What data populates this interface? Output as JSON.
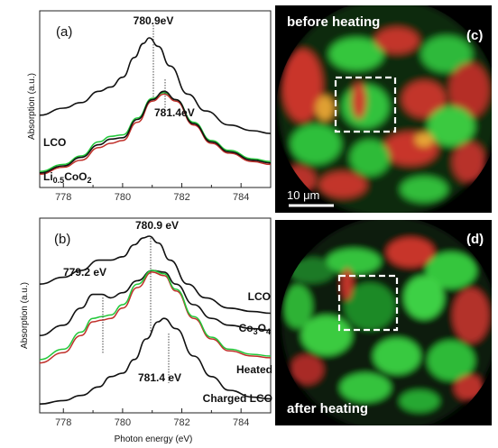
{
  "panels": {
    "a": {
      "label": "(a)",
      "ylabel": "Absorption (a.u.)",
      "peak1": "780.9eV",
      "peak2": "781.4eV",
      "curve_label_1": "LCO",
      "curve_label_2_main": "Li",
      "curve_label_2_sub1": "0.5",
      "curve_label_2_mid": "CoO",
      "curve_label_2_sub2": "2",
      "xticks": [
        "778",
        "780",
        "782",
        "784"
      ]
    },
    "b": {
      "label": "(b)",
      "ylabel": "Absorption (a.u.)",
      "xlabel": "Photon energy (eV)",
      "peak_top": "780.9 eV",
      "peak_left": "779.2 eV",
      "peak_right": "781.4 eV",
      "curve_label_lco": "LCO",
      "curve_label_co3o4_main": "Co",
      "curve_label_co3o4_sub1": "3",
      "curve_label_co3o4_mid": "O",
      "curve_label_co3o4_sub2": "4",
      "curve_label_heated": "Heated",
      "curve_label_charged": "Charged LCO",
      "xticks": [
        "778",
        "780",
        "782",
        "784"
      ]
    },
    "c": {
      "label": "(c)",
      "caption": "before heating",
      "scalebar": "10 μm"
    },
    "d": {
      "label": "(d)",
      "caption": "after heating"
    }
  },
  "colors": {
    "green": "#22c83a",
    "red": "#c0302a",
    "black": "#111111"
  },
  "chart_data": [
    {
      "type": "line",
      "panel": "a",
      "xlabel": "",
      "ylabel": "Absorption (a.u.)",
      "xlim": [
        777.2,
        785
      ],
      "series": [
        {
          "name": "LCO",
          "color": "#111111",
          "x": [
            777.2,
            778.0,
            778.6,
            779.2,
            779.6,
            780.0,
            780.4,
            780.7,
            780.9,
            781.2,
            781.6,
            782.2,
            782.8,
            783.6,
            784.4,
            785.0
          ],
          "y": [
            0.45,
            0.5,
            0.54,
            0.62,
            0.65,
            0.72,
            0.86,
            0.96,
            1.0,
            0.94,
            0.8,
            0.6,
            0.48,
            0.38,
            0.34,
            0.32
          ]
        },
        {
          "name": "",
          "color": "#22c83a",
          "x": [
            777.2,
            778.0,
            778.6,
            779.2,
            779.6,
            780.0,
            780.5,
            781.0,
            781.4,
            781.8,
            782.4,
            783.0,
            783.6,
            784.4,
            785.0
          ],
          "y": [
            0.05,
            0.1,
            0.16,
            0.26,
            0.3,
            0.31,
            0.43,
            0.57,
            0.61,
            0.56,
            0.4,
            0.27,
            0.2,
            0.14,
            0.12
          ]
        },
        {
          "name": "",
          "color": "#c0302a",
          "x": [
            777.2,
            778.0,
            778.6,
            779.2,
            779.6,
            780.0,
            780.5,
            781.0,
            781.4,
            781.8,
            782.4,
            783.0,
            783.6,
            784.4,
            785.0
          ],
          "y": [
            0.03,
            0.08,
            0.13,
            0.22,
            0.25,
            0.27,
            0.4,
            0.55,
            0.6,
            0.55,
            0.38,
            0.25,
            0.18,
            0.12,
            0.1
          ]
        },
        {
          "name": "",
          "color": "#111111",
          "x": [
            777.2,
            778.0,
            778.6,
            779.2,
            779.6,
            780.0,
            780.5,
            781.0,
            781.4,
            781.8,
            782.4,
            783.0,
            783.6,
            784.4,
            785.0
          ],
          "y": [
            0.04,
            0.09,
            0.15,
            0.24,
            0.28,
            0.29,
            0.42,
            0.56,
            0.62,
            0.56,
            0.39,
            0.26,
            0.19,
            0.13,
            0.11
          ]
        }
      ]
    },
    {
      "type": "line",
      "panel": "b",
      "xlabel": "Photon energy (eV)",
      "ylabel": "Absorption (a.u.)",
      "xlim": [
        777.2,
        785
      ],
      "series": [
        {
          "name": "LCO",
          "color": "#111111",
          "x": [
            777.2,
            778.0,
            778.6,
            779.2,
            779.6,
            780.0,
            780.4,
            780.7,
            780.9,
            781.2,
            781.6,
            782.2,
            782.8,
            783.6,
            784.4,
            785.0
          ],
          "y": [
            0.72,
            0.76,
            0.8,
            0.86,
            0.86,
            0.88,
            0.95,
            0.99,
            1.0,
            0.96,
            0.86,
            0.72,
            0.64,
            0.58,
            0.56,
            0.55
          ]
        },
        {
          "name": "Co3O4",
          "color": "#111111",
          "x": [
            777.2,
            778.0,
            778.6,
            779.0,
            779.3,
            779.6,
            780.0,
            780.5,
            781.0,
            781.4,
            781.8,
            782.4,
            783.0,
            783.6,
            784.4,
            785.0
          ],
          "y": [
            0.42,
            0.48,
            0.58,
            0.66,
            0.66,
            0.64,
            0.67,
            0.74,
            0.8,
            0.79,
            0.72,
            0.6,
            0.52,
            0.48,
            0.46,
            0.45
          ]
        },
        {
          "name": "Heated",
          "color": "#c0302a",
          "x": [
            777.2,
            778.0,
            778.6,
            779.0,
            779.3,
            779.6,
            780.0,
            780.5,
            781.0,
            781.4,
            781.8,
            782.4,
            783.0,
            783.6,
            784.4,
            785.0
          ],
          "y": [
            0.26,
            0.32,
            0.42,
            0.5,
            0.51,
            0.52,
            0.58,
            0.7,
            0.79,
            0.77,
            0.68,
            0.52,
            0.4,
            0.33,
            0.3,
            0.29
          ]
        },
        {
          "name": "",
          "color": "#22c83a",
          "x": [
            777.2,
            778.0,
            778.6,
            779.0,
            779.3,
            779.6,
            780.0,
            780.5,
            781.0,
            781.4,
            781.8,
            782.4,
            783.0,
            783.6,
            784.4,
            785.0
          ],
          "y": [
            0.28,
            0.34,
            0.44,
            0.52,
            0.53,
            0.54,
            0.6,
            0.72,
            0.8,
            0.78,
            0.69,
            0.53,
            0.41,
            0.34,
            0.31,
            0.3
          ]
        },
        {
          "name": "Charged LCO",
          "color": "#111111",
          "x": [
            777.2,
            778.0,
            778.6,
            779.2,
            779.6,
            780.0,
            780.4,
            780.8,
            781.2,
            781.4,
            781.8,
            782.4,
            783.0,
            783.6,
            784.4,
            785.0
          ],
          "y": [
            0.02,
            0.04,
            0.07,
            0.12,
            0.18,
            0.2,
            0.28,
            0.4,
            0.5,
            0.52,
            0.46,
            0.3,
            0.18,
            0.1,
            0.06,
            0.05
          ]
        }
      ]
    }
  ]
}
